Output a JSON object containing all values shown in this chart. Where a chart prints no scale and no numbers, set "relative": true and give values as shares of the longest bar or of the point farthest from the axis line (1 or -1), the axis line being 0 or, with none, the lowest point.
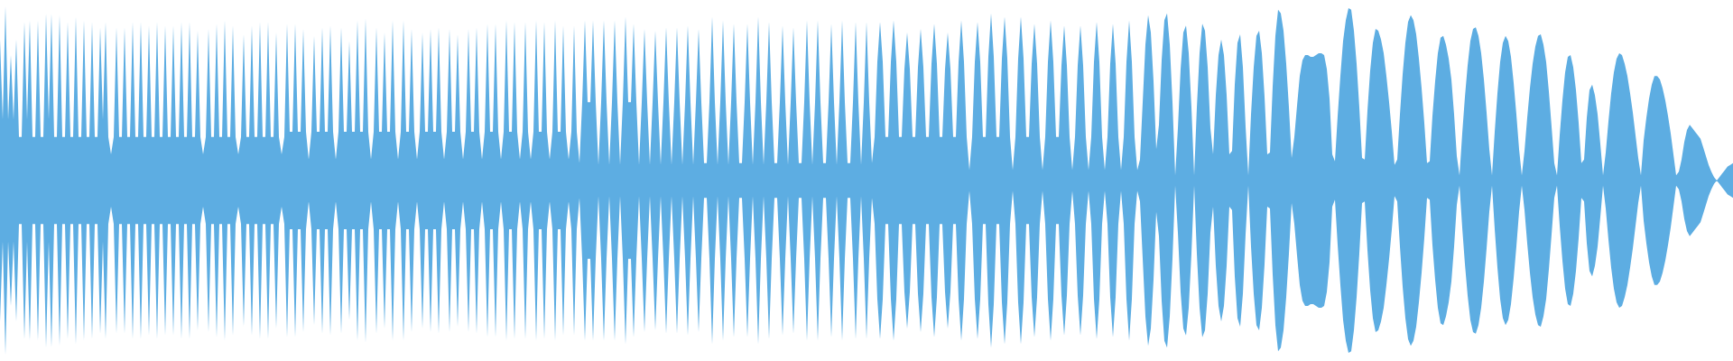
{
  "chart_data": {
    "type": "area",
    "relative": true,
    "categories": [
      null,
      null,
      null,
      null,
      null,
      null,
      null,
      null,
      null,
      null,
      null,
      null,
      null,
      null,
      null,
      null,
      null,
      null,
      null,
      null,
      null,
      null,
      null,
      null,
      null,
      null,
      null,
      null,
      null,
      null,
      null,
      null,
      null,
      null,
      null,
      null,
      null,
      null,
      null,
      null,
      null,
      null,
      null,
      null,
      null,
      null,
      null,
      null,
      null,
      null,
      null,
      null,
      null,
      null,
      null,
      null,
      null,
      null,
      null,
      null,
      null,
      null,
      null,
      null,
      null,
      null,
      null,
      null,
      null,
      null,
      null,
      null,
      null,
      null,
      null,
      null,
      null,
      null,
      null,
      null,
      null,
      null,
      null,
      null,
      null,
      null,
      null,
      null,
      null,
      null,
      null,
      null,
      null,
      null,
      null,
      null,
      null,
      null,
      null,
      null,
      null,
      null,
      null,
      null,
      null,
      null,
      null,
      null,
      null,
      null,
      null,
      null,
      null,
      null,
      null,
      null,
      null,
      null,
      null,
      null,
      null,
      null,
      null,
      null,
      null,
      null,
      null,
      null,
      null,
      null,
      null,
      null,
      null,
      null,
      null,
      null,
      null,
      null,
      null,
      null,
      null,
      null,
      null,
      null,
      null,
      null,
      null,
      null,
      null,
      null,
      null,
      null,
      null,
      null,
      null,
      null,
      null,
      null,
      null,
      null,
      null,
      null,
      null,
      null,
      null,
      null,
      null,
      null,
      null,
      null,
      null,
      null,
      null,
      null,
      null,
      null,
      null,
      null,
      null,
      null,
      null,
      null,
      null,
      null,
      null,
      null,
      null,
      null,
      null,
      null,
      null,
      null,
      null,
      null,
      null,
      null,
      null,
      null,
      null,
      null,
      null,
      null,
      null,
      null,
      null,
      null,
      null,
      null,
      null,
      null,
      null,
      null,
      null,
      null,
      null,
      null,
      null,
      null,
      null,
      null,
      null,
      null,
      null,
      null,
      null,
      null,
      null,
      null,
      null,
      null,
      null,
      null,
      null,
      null,
      null,
      null,
      null,
      null,
      null,
      null,
      null,
      null,
      null,
      null,
      null,
      null,
      null,
      null,
      null,
      null,
      null,
      null,
      null,
      null,
      null,
      null,
      null,
      null,
      null,
      null,
      null,
      null,
      null,
      null,
      null,
      null,
      null,
      null,
      null,
      null,
      null,
      null,
      null,
      null,
      null,
      null,
      null,
      null,
      null,
      null,
      null,
      null,
      null,
      null,
      null,
      null,
      null,
      null,
      null,
      null,
      null,
      null,
      null,
      null,
      null,
      null,
      null,
      null,
      null,
      null,
      null,
      null,
      null,
      null,
      null,
      null,
      null,
      null,
      null,
      null,
      null,
      null,
      null,
      null,
      null,
      null,
      null,
      null,
      null,
      null,
      null,
      null,
      null,
      null,
      null,
      null,
      null,
      null,
      null,
      null,
      null,
      null,
      null,
      null,
      null,
      null,
      null,
      null,
      null,
      null,
      null,
      null,
      null,
      null,
      null,
      null,
      null,
      null,
      null,
      null,
      null,
      null,
      null,
      null,
      null,
      null,
      null,
      null,
      null,
      null,
      null,
      null,
      null,
      null,
      null,
      null,
      null,
      null,
      null,
      null,
      null,
      null,
      null,
      null,
      null,
      null,
      null,
      null,
      null,
      null,
      null,
      null,
      null,
      null,
      null,
      null,
      null,
      null,
      null,
      null,
      null,
      null,
      null,
      null,
      null,
      null,
      null,
      null,
      null,
      null,
      null,
      null,
      null,
      null,
      null,
      null,
      null,
      null,
      null,
      null,
      null,
      null,
      null,
      null,
      null,
      null,
      null,
      null,
      null,
      null,
      null,
      null,
      null,
      null,
      null,
      null,
      null,
      null,
      null,
      null,
      null,
      null,
      null,
      null,
      null,
      null,
      null,
      null,
      null,
      null,
      null,
      null,
      null,
      null,
      null,
      null,
      null,
      null,
      null,
      null,
      null,
      null,
      null,
      null,
      null,
      null,
      null,
      null,
      null,
      null,
      null,
      null,
      null,
      null,
      null,
      null,
      null,
      null,
      null,
      null,
      null,
      null,
      null,
      null,
      null,
      null,
      null,
      null,
      null,
      null,
      null,
      null,
      null,
      null,
      null,
      null,
      null,
      null,
      null,
      null,
      null,
      null,
      null,
      null,
      null,
      null,
      null,
      null,
      null,
      null,
      null,
      null,
      null,
      null,
      null,
      null,
      null,
      null,
      null,
      null,
      null,
      null,
      null,
      null,
      null,
      null,
      null,
      null,
      null,
      null,
      null,
      null,
      null,
      null,
      null,
      null,
      null,
      null,
      null,
      null,
      null,
      null,
      null,
      null,
      null,
      null,
      null,
      null,
      null,
      null,
      null,
      null,
      null,
      null,
      null,
      null,
      null,
      null,
      null,
      null,
      null,
      null,
      null,
      null,
      null,
      null,
      null,
      null,
      null,
      null,
      null,
      null,
      null,
      null,
      null,
      null,
      null,
      null,
      null,
      null,
      null,
      null,
      null,
      null,
      null,
      null,
      null,
      null,
      null,
      null,
      null,
      null,
      null,
      null,
      null,
      null,
      null,
      null,
      null,
      null,
      null,
      null,
      null,
      null,
      null,
      null,
      null,
      null,
      null,
      null,
      null,
      null,
      null,
      null,
      null,
      null,
      null,
      null,
      null,
      null,
      null,
      null,
      null,
      null,
      null,
      null,
      null,
      null,
      null,
      null,
      null,
      null,
      null,
      null,
      null,
      null,
      null,
      null,
      null,
      null,
      null,
      null,
      null,
      null,
      null,
      null,
      null,
      null,
      null,
      null,
      null
    ],
    "series": [
      {
        "color": "#5dade2",
        "values": [
          0.81,
          0.35,
          1,
          0.35,
          0.72,
          0.35,
          0.81,
          0.25,
          0.25,
          0.91,
          0.35,
          0.92,
          0.25,
          0.25,
          0.92,
          0.25,
          0.25,
          0.96,
          0.35,
          0.96,
          0.25,
          0.25,
          0.95,
          0.25,
          0.25,
          0.91,
          0.25,
          0.25,
          0.94,
          0.25,
          0.25,
          0.92,
          0.25,
          0.25,
          0.91,
          0.25,
          0.25,
          0.88,
          0.35,
          0.91,
          0.25,
          0.15,
          0.25,
          0.88,
          0.25,
          0.25,
          0.88,
          0.25,
          0.25,
          0.91,
          0.25,
          0.25,
          0.91,
          0.25,
          0.25,
          0.89,
          0.25,
          0.25,
          0.91,
          0.25,
          0.25,
          0.89,
          0.25,
          0.25,
          0.89,
          0.25,
          0.25,
          0.91,
          0.25,
          0.25,
          0.91,
          0.25,
          0.25,
          0.86,
          0.25,
          0.15,
          0.25,
          0.87,
          0.25,
          0.25,
          0.9,
          0.25,
          0.25,
          0.92,
          0.25,
          0.25,
          0.89,
          0.25,
          0.15,
          0.25,
          0.84,
          0.25,
          0.25,
          0.89,
          0.25,
          0.25,
          0.91,
          0.25,
          0.25,
          0.91,
          0.25,
          0.25,
          0.85,
          0.25,
          0.15,
          0.25,
          0.9,
          0.28,
          0.28,
          0.9,
          0.28,
          0.28,
          0.87,
          0.28,
          0.12,
          0.28,
          0.83,
          0.28,
          0.28,
          0.88,
          0.28,
          0.28,
          0.89,
          0.28,
          0.12,
          0.28,
          0.88,
          0.28,
          0.28,
          0.8,
          0.28,
          0.28,
          0.92,
          0.28,
          0.28,
          0.93,
          0.28,
          0.12,
          0.28,
          0.88,
          0.28,
          0.28,
          0.85,
          0.28,
          0.28,
          0.92,
          0.28,
          0.12,
          0.28,
          0.92,
          0.28,
          0.28,
          0.87,
          0.28,
          0.12,
          0.28,
          0.85,
          0.28,
          0.28,
          0.87,
          0.28,
          0.28,
          0.88,
          0.28,
          0.12,
          0.28,
          0.87,
          0.28,
          0.28,
          0.84,
          0.28,
          0.12,
          0.28,
          0.87,
          0.28,
          0.28,
          0.88,
          0.28,
          0.12,
          0.28,
          0.9,
          0.28,
          0.28,
          0.9,
          0.28,
          0.12,
          0.28,
          0.92,
          0.28,
          0.28,
          0.91,
          0.28,
          0.12,
          0.28,
          0.91,
          0.28,
          0.12,
          0.28,
          0.92,
          0.28,
          0.28,
          0.91,
          0.28,
          0.12,
          0.28,
          0.92,
          0.28,
          0.28,
          0.89,
          0.28,
          0.12,
          0.28,
          0.89,
          0.28,
          0.1,
          0.45,
          0.92,
          0.45,
          0.45,
          0.92,
          0.45,
          0.09,
          0.45,
          0.92,
          0.45,
          0.09,
          0.45,
          0.92,
          0.45,
          0.09,
          0.45,
          0.94,
          0.45,
          0.45,
          0.9,
          0.45,
          0.09,
          0.45,
          0.87,
          0.45,
          0.09,
          0.45,
          0.86,
          0.45,
          0.09,
          0.45,
          0.88,
          0.45,
          0.09,
          0.45,
          0.88,
          0.45,
          0.09,
          0.45,
          0.89,
          0.45,
          0.09,
          0.45,
          0.87,
          0.45,
          0.1,
          0.1,
          0.45,
          0.94,
          0.45,
          0.09,
          0.45,
          0.92,
          0.45,
          0.09,
          0.45,
          0.9,
          0.45,
          0.1,
          0.1,
          0.45,
          0.9,
          0.45,
          0.09,
          0.45,
          0.94,
          0.45,
          0.09,
          0.45,
          0.91,
          0.45,
          0.1,
          0.1,
          0.45,
          0.89,
          0.45,
          0.09,
          0.45,
          0.88,
          0.45,
          0.1,
          0.1,
          0.45,
          0.92,
          0.45,
          0.09,
          0.45,
          0.92,
          0.45,
          0.1,
          0.1,
          0.45,
          0.9,
          0.45,
          0.09,
          0.45,
          0.92,
          0.45,
          0.1,
          0.1,
          0.45,
          0.91,
          0.45,
          0.09,
          0.45,
          0.91,
          0.45,
          0.1,
          0.25,
          0.68,
          0.91,
          0.68,
          0.25,
          0.25,
          0.68,
          0.92,
          0.68,
          0.25,
          0.25,
          0.64,
          0.85,
          0.64,
          0.25,
          0.25,
          0.65,
          0.87,
          0.65,
          0.25,
          0.25,
          0.67,
          0.9,
          0.67,
          0.25,
          0.25,
          0.64,
          0.85,
          0.64,
          0.25,
          0.25,
          0.68,
          0.92,
          0.68,
          0.25,
          0.06,
          0.25,
          0.68,
          0.91,
          0.68,
          0.25,
          0.25,
          0.71,
          0.96,
          0.71,
          0.25,
          0.25,
          0.7,
          0.94,
          0.7,
          0.25,
          0.06,
          0.25,
          0.7,
          0.94,
          0.7,
          0.25,
          0.25,
          0.67,
          0.9,
          0.67,
          0.25,
          0.06,
          0.25,
          0.68,
          0.92,
          0.68,
          0.25,
          0.25,
          0.66,
          0.89,
          0.66,
          0.25,
          0.06,
          0.25,
          0.66,
          0.89,
          0.66,
          0.25,
          0.06,
          0.25,
          0.68,
          0.91,
          0.68,
          0.25,
          0.06,
          0.25,
          0.67,
          0.9,
          0.67,
          0.25,
          0.06,
          0.25,
          0.68,
          0.92,
          0.68,
          0.25,
          0.06,
          0.12,
          0.45,
          0.78,
          0.95,
          0.85,
          0.57,
          0.18,
          0.32,
          0.69,
          0.92,
          0.96,
          0.78,
          0.45,
          0.03,
          0.3,
          0.64,
          0.85,
          0.89,
          0.73,
          0.42,
          0.03,
          0.42,
          0.73,
          0.9,
          0.86,
          0.65,
          0.3,
          0.15,
          0.49,
          0.72,
          0.81,
          0.72,
          0.49,
          0.15,
          0.17,
          0.55,
          0.79,
          0.84,
          0.65,
          0.31,
          0.03,
          0.38,
          0.65,
          0.83,
          0.86,
          0.73,
          0.48,
          0.15,
          0.16,
          0.54,
          0.83,
          0.98,
          0.96,
          0.86,
          0.67,
          0.42,
          0.13,
          0.25,
          0.43,
          0.6,
          0.69,
          0.72,
          0.72,
          0.71,
          0.71,
          0.72,
          0.73,
          0.73,
          0.72,
          0.64,
          0.47,
          0.15,
          0.11,
          0.37,
          0.6,
          0.8,
          0.92,
          0.99,
          0.98,
          0.86,
          0.67,
          0.42,
          0.13,
          0.12,
          0.4,
          0.63,
          0.79,
          0.87,
          0.86,
          0.81,
          0.73,
          0.6,
          0.45,
          0.28,
          0.09,
          0.12,
          0.38,
          0.61,
          0.79,
          0.91,
          0.95,
          0.92,
          0.84,
          0.7,
          0.53,
          0.33,
          0.1,
          0.11,
          0.37,
          0.57,
          0.73,
          0.82,
          0.83,
          0.78,
          0.7,
          0.58,
          0.38,
          0.14,
          0.03,
          0.27,
          0.48,
          0.66,
          0.8,
          0.87,
          0.88,
          0.83,
          0.73,
          0.58,
          0.39,
          0.18,
          0.03,
          0.28,
          0.5,
          0.68,
          0.79,
          0.83,
          0.8,
          0.71,
          0.56,
          0.38,
          0.18,
          0.03,
          0.17,
          0.36,
          0.53,
          0.67,
          0.77,
          0.83,
          0.84,
          0.78,
          0.68,
          0.51,
          0.31,
          0.1,
          0.03,
          0.26,
          0.46,
          0.62,
          0.71,
          0.72,
          0.65,
          0.52,
          0.33,
          0.1,
          0.12,
          0.36,
          0.52,
          0.55,
          0.49,
          0.38,
          0.21,
          0.03,
          0.16,
          0.34,
          0.5,
          0.62,
          0.7,
          0.73,
          0.72,
          0.67,
          0.6,
          0.5,
          0.39,
          0.26,
          0.13,
          0.03,
          0.23,
          0.36,
          0.47,
          0.55,
          0.6,
          0.6,
          0.58,
          0.53,
          0.46,
          0.37,
          0.27,
          0.15,
          0.03,
          0.05,
          0.12,
          0.22,
          0.29,
          0.32,
          0.3,
          0.28,
          0.26,
          0.24,
          0.19,
          0.14,
          0.09,
          0.05,
          0.02,
          0,
          0.02,
          0.04,
          0.06,
          0.08,
          0.09,
          0.1
        ]
      },
      {
        "color": "#5dade2",
        "values": [
          -0.81,
          -0.35,
          -1,
          -0.35,
          -0.72,
          -0.35,
          -0.81,
          -0.25,
          -0.25,
          -0.91,
          -0.35,
          -0.92,
          -0.25,
          -0.25,
          -0.92,
          -0.25,
          -0.25,
          -0.96,
          -0.35,
          -0.96,
          -0.25,
          -0.25,
          -0.95,
          -0.25,
          -0.25,
          -0.91,
          -0.25,
          -0.25,
          -0.94,
          -0.25,
          -0.25,
          -0.92,
          -0.25,
          -0.25,
          -0.91,
          -0.25,
          -0.25,
          -0.88,
          -0.35,
          -0.91,
          -0.25,
          -0.15,
          -0.25,
          -0.88,
          -0.25,
          -0.25,
          -0.88,
          -0.25,
          -0.25,
          -0.91,
          -0.25,
          -0.25,
          -0.91,
          -0.25,
          -0.25,
          -0.89,
          -0.25,
          -0.25,
          -0.91,
          -0.25,
          -0.25,
          -0.89,
          -0.25,
          -0.25,
          -0.89,
          -0.25,
          -0.25,
          -0.91,
          -0.25,
          -0.25,
          -0.91,
          -0.25,
          -0.25,
          -0.86,
          -0.25,
          -0.15,
          -0.25,
          -0.87,
          -0.25,
          -0.25,
          -0.9,
          -0.25,
          -0.25,
          -0.92,
          -0.25,
          -0.25,
          -0.89,
          -0.25,
          -0.15,
          -0.25,
          -0.84,
          -0.25,
          -0.25,
          -0.89,
          -0.25,
          -0.25,
          -0.91,
          -0.25,
          -0.25,
          -0.91,
          -0.25,
          -0.25,
          -0.85,
          -0.25,
          -0.15,
          -0.25,
          -0.9,
          -0.28,
          -0.28,
          -0.9,
          -0.28,
          -0.28,
          -0.87,
          -0.28,
          -0.12,
          -0.28,
          -0.83,
          -0.28,
          -0.28,
          -0.88,
          -0.28,
          -0.28,
          -0.89,
          -0.28,
          -0.12,
          -0.28,
          -0.88,
          -0.28,
          -0.28,
          -0.8,
          -0.28,
          -0.28,
          -0.92,
          -0.28,
          -0.28,
          -0.93,
          -0.28,
          -0.12,
          -0.28,
          -0.88,
          -0.28,
          -0.28,
          -0.85,
          -0.28,
          -0.28,
          -0.92,
          -0.28,
          -0.12,
          -0.28,
          -0.92,
          -0.28,
          -0.28,
          -0.87,
          -0.28,
          -0.12,
          -0.28,
          -0.85,
          -0.28,
          -0.28,
          -0.87,
          -0.28,
          -0.28,
          -0.88,
          -0.28,
          -0.12,
          -0.28,
          -0.87,
          -0.28,
          -0.28,
          -0.84,
          -0.28,
          -0.12,
          -0.28,
          -0.87,
          -0.28,
          -0.28,
          -0.88,
          -0.28,
          -0.12,
          -0.28,
          -0.9,
          -0.28,
          -0.28,
          -0.9,
          -0.28,
          -0.12,
          -0.28,
          -0.92,
          -0.28,
          -0.28,
          -0.91,
          -0.28,
          -0.12,
          -0.28,
          -0.91,
          -0.28,
          -0.12,
          -0.28,
          -0.92,
          -0.28,
          -0.28,
          -0.91,
          -0.28,
          -0.12,
          -0.28,
          -0.92,
          -0.28,
          -0.28,
          -0.89,
          -0.28,
          -0.12,
          -0.28,
          -0.89,
          -0.28,
          -0.1,
          -0.45,
          -0.92,
          -0.45,
          -0.45,
          -0.92,
          -0.45,
          -0.09,
          -0.45,
          -0.92,
          -0.45,
          -0.09,
          -0.45,
          -0.92,
          -0.45,
          -0.09,
          -0.45,
          -0.94,
          -0.45,
          -0.45,
          -0.9,
          -0.45,
          -0.09,
          -0.45,
          -0.87,
          -0.45,
          -0.09,
          -0.45,
          -0.86,
          -0.45,
          -0.09,
          -0.45,
          -0.88,
          -0.45,
          -0.09,
          -0.45,
          -0.88,
          -0.45,
          -0.09,
          -0.45,
          -0.89,
          -0.45,
          -0.09,
          -0.45,
          -0.87,
          -0.45,
          -0.1,
          -0.1,
          -0.45,
          -0.94,
          -0.45,
          -0.09,
          -0.45,
          -0.92,
          -0.45,
          -0.09,
          -0.45,
          -0.9,
          -0.45,
          -0.1,
          -0.1,
          -0.45,
          -0.9,
          -0.45,
          -0.09,
          -0.45,
          -0.94,
          -0.45,
          -0.09,
          -0.45,
          -0.91,
          -0.45,
          -0.1,
          -0.1,
          -0.45,
          -0.89,
          -0.45,
          -0.09,
          -0.45,
          -0.88,
          -0.45,
          -0.1,
          -0.1,
          -0.45,
          -0.92,
          -0.45,
          -0.09,
          -0.45,
          -0.92,
          -0.45,
          -0.1,
          -0.1,
          -0.45,
          -0.9,
          -0.45,
          -0.09,
          -0.45,
          -0.92,
          -0.45,
          -0.1,
          -0.1,
          -0.45,
          -0.91,
          -0.45,
          -0.09,
          -0.45,
          -0.91,
          -0.45,
          -0.1,
          -0.25,
          -0.68,
          -0.91,
          -0.68,
          -0.25,
          -0.25,
          -0.68,
          -0.92,
          -0.68,
          -0.25,
          -0.25,
          -0.64,
          -0.85,
          -0.64,
          -0.25,
          -0.25,
          -0.65,
          -0.87,
          -0.65,
          -0.25,
          -0.25,
          -0.67,
          -0.9,
          -0.67,
          -0.25,
          -0.25,
          -0.64,
          -0.85,
          -0.64,
          -0.25,
          -0.25,
          -0.68,
          -0.92,
          -0.68,
          -0.25,
          -0.06,
          -0.25,
          -0.68,
          -0.91,
          -0.68,
          -0.25,
          -0.25,
          -0.71,
          -0.96,
          -0.71,
          -0.25,
          -0.25,
          -0.7,
          -0.94,
          -0.7,
          -0.25,
          -0.06,
          -0.25,
          -0.7,
          -0.94,
          -0.7,
          -0.25,
          -0.25,
          -0.67,
          -0.9,
          -0.67,
          -0.25,
          -0.06,
          -0.25,
          -0.68,
          -0.92,
          -0.68,
          -0.25,
          -0.25,
          -0.66,
          -0.89,
          -0.66,
          -0.25,
          -0.06,
          -0.25,
          -0.66,
          -0.89,
          -0.66,
          -0.25,
          -0.06,
          -0.25,
          -0.68,
          -0.91,
          -0.68,
          -0.25,
          -0.06,
          -0.25,
          -0.67,
          -0.9,
          -0.67,
          -0.25,
          -0.06,
          -0.25,
          -0.68,
          -0.92,
          -0.68,
          -0.25,
          -0.06,
          -0.12,
          -0.45,
          -0.78,
          -0.95,
          -0.85,
          -0.57,
          -0.18,
          -0.32,
          -0.69,
          -0.92,
          -0.96,
          -0.78,
          -0.45,
          -0.03,
          -0.3,
          -0.64,
          -0.85,
          -0.89,
          -0.73,
          -0.42,
          -0.03,
          -0.42,
          -0.73,
          -0.9,
          -0.86,
          -0.65,
          -0.3,
          -0.15,
          -0.49,
          -0.72,
          -0.81,
          -0.72,
          -0.49,
          -0.15,
          -0.17,
          -0.55,
          -0.79,
          -0.84,
          -0.65,
          -0.31,
          -0.03,
          -0.38,
          -0.65,
          -0.83,
          -0.86,
          -0.73,
          -0.48,
          -0.15,
          -0.16,
          -0.54,
          -0.83,
          -0.98,
          -0.96,
          -0.86,
          -0.67,
          -0.42,
          -0.13,
          -0.25,
          -0.43,
          -0.6,
          -0.69,
          -0.72,
          -0.72,
          -0.71,
          -0.71,
          -0.72,
          -0.73,
          -0.73,
          -0.72,
          -0.64,
          -0.47,
          -0.15,
          -0.11,
          -0.37,
          -0.6,
          -0.8,
          -0.92,
          -0.99,
          -0.98,
          -0.86,
          -0.67,
          -0.42,
          -0.13,
          -0.12,
          -0.4,
          -0.63,
          -0.79,
          -0.87,
          -0.86,
          -0.81,
          -0.73,
          -0.6,
          -0.45,
          -0.28,
          -0.09,
          -0.12,
          -0.38,
          -0.61,
          -0.79,
          -0.91,
          -0.95,
          -0.92,
          -0.84,
          -0.7,
          -0.53,
          -0.33,
          -0.1,
          -0.11,
          -0.37,
          -0.57,
          -0.73,
          -0.82,
          -0.83,
          -0.78,
          -0.7,
          -0.58,
          -0.38,
          -0.14,
          -0.03,
          -0.27,
          -0.48,
          -0.66,
          -0.8,
          -0.87,
          -0.88,
          -0.83,
          -0.73,
          -0.58,
          -0.39,
          -0.18,
          -0.03,
          -0.28,
          -0.5,
          -0.68,
          -0.79,
          -0.83,
          -0.8,
          -0.71,
          -0.56,
          -0.38,
          -0.18,
          -0.03,
          -0.17,
          -0.36,
          -0.53,
          -0.67,
          -0.77,
          -0.83,
          -0.84,
          -0.78,
          -0.68,
          -0.51,
          -0.31,
          -0.1,
          -0.03,
          -0.26,
          -0.46,
          -0.62,
          -0.71,
          -0.72,
          -0.65,
          -0.52,
          -0.33,
          -0.1,
          -0.12,
          -0.36,
          -0.52,
          -0.55,
          -0.49,
          -0.38,
          -0.21,
          -0.03,
          -0.16,
          -0.34,
          -0.5,
          -0.62,
          -0.7,
          -0.73,
          -0.72,
          -0.67,
          -0.6,
          -0.5,
          -0.39,
          -0.26,
          -0.13,
          -0.03,
          -0.23,
          -0.36,
          -0.47,
          -0.55,
          -0.6,
          -0.6,
          -0.58,
          -0.53,
          -0.46,
          -0.37,
          -0.27,
          -0.15,
          -0.03,
          -0.05,
          -0.12,
          -0.22,
          -0.29,
          -0.32,
          -0.3,
          -0.28,
          -0.26,
          -0.24,
          -0.19,
          -0.14,
          -0.09,
          -0.05,
          -0.02,
          0,
          -0.02,
          -0.04,
          -0.06,
          -0.08,
          -0.09,
          -0.1
        ]
      }
    ]
  }
}
